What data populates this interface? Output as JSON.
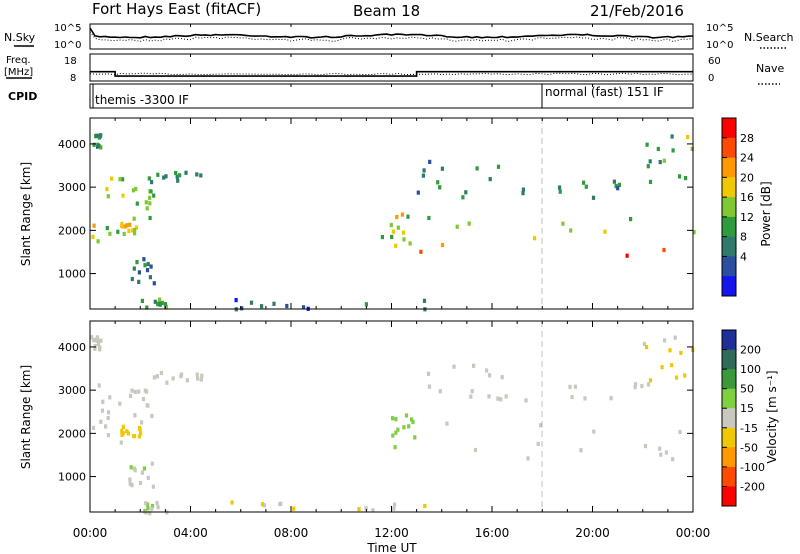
{
  "header": {
    "station": "Fort Hays East (fitACF)",
    "beam": "Beam 18",
    "date": "21/Feb/2016"
  },
  "noise_panel": {
    "left_label": "N.Sky",
    "right_label": "N.Search",
    "left_ticks": [
      "10^5",
      "10^0"
    ],
    "right_ticks": [
      "10^5",
      "10^0"
    ]
  },
  "freq_panel": {
    "left_label_line1": "Freq.",
    "left_label_line2": "[MHz]",
    "right_label": "Nave",
    "left_ticks": [
      "18",
      "8"
    ],
    "right_ticks": [
      "60",
      "0"
    ]
  },
  "cpid_panel": {
    "label": "CPID",
    "mode1": "themis -3300 IF",
    "mode2": "normal (fast) 151 IF"
  },
  "power_panel": {
    "ylabel": "Slant Range [km]",
    "cbar_label": "Power [dB]",
    "yticks": [
      "1000",
      "2000",
      "3000",
      "4000"
    ],
    "cbar_ticks": [
      "28",
      "24",
      "20",
      "16",
      "12",
      "8",
      "4"
    ],
    "cbar_colors": [
      "#ff0000",
      "#ff4a00",
      "#ff9900",
      "#f0c800",
      "#7fc832",
      "#2e9b3c",
      "#2f7a6a",
      "#2a4fa0",
      "#1414f0"
    ]
  },
  "velocity_panel": {
    "ylabel": "Slant Range [km]",
    "cbar_label": "Velocity [m s⁻¹]",
    "yticks": [
      "1000",
      "2000",
      "3000",
      "4000"
    ],
    "cbar_ticks": [
      "200",
      "100",
      "50",
      "15",
      "-15",
      "-50",
      "-100",
      "-200"
    ],
    "cbar_colors": [
      "#1e2f9a",
      "#2f6a5a",
      "#3a9a3a",
      "#7fd040",
      "#c8c8be",
      "#f0c800",
      "#ff9900",
      "#ff4a00",
      "#ff0000"
    ]
  },
  "xaxis": {
    "label": "Time UT",
    "ticks": [
      "00:00",
      "04:00",
      "08:00",
      "12:00",
      "16:00",
      "20:00",
      "00:00"
    ]
  },
  "chart_data": {
    "type": "heatmap",
    "title": "Fort Hays East (fitACF)  Beam 18  21/Feb/2016",
    "xlabel": "Time UT",
    "ylabel": "Slant Range [km]",
    "xlim": [
      0,
      24
    ],
    "ylim": [
      180,
      4600
    ],
    "x_unit": "hours UT",
    "frequency_mhz": [
      {
        "start": 0,
        "end": 1.0,
        "value": 13.5
      },
      {
        "start": 1.0,
        "end": 13.0,
        "value": 10.9
      },
      {
        "start": 13.0,
        "end": 24,
        "value": 13.5
      }
    ],
    "cpid_segments": [
      {
        "start": 0,
        "end": 18.0,
        "label": "themis -3300 IF"
      },
      {
        "start": 18.0,
        "end": 24,
        "label": "normal (fast) 151 IF"
      }
    ],
    "power_db_range": [
      0,
      32
    ],
    "velocity_ms_range": [
      -250,
      250
    ],
    "echo_regions": [
      {
        "t0": 0.0,
        "t1": 0.4,
        "r0": 3950,
        "r1": 4300,
        "power_db": 10,
        "velocity": 0
      },
      {
        "t0": 0.0,
        "t1": 1.3,
        "r0": 1750,
        "r1": 3300,
        "power_db": 18,
        "velocity": -10
      },
      {
        "t0": 1.2,
        "t1": 2.0,
        "r0": 1950,
        "r1": 2200,
        "power_db": 22,
        "velocity": -60
      },
      {
        "t0": 1.5,
        "t1": 2.5,
        "r0": 2300,
        "r1": 3100,
        "power_db": 14,
        "velocity": 0
      },
      {
        "t0": 2.0,
        "t1": 4.5,
        "r0": 3150,
        "r1": 3450,
        "power_db": 10,
        "velocity": 0
      },
      {
        "t0": 1.5,
        "t1": 2.5,
        "r0": 800,
        "r1": 1400,
        "power_db": 8,
        "velocity": 20
      },
      {
        "t0": 2.0,
        "t1": 3.0,
        "r0": 200,
        "r1": 450,
        "power_db": 12,
        "velocity": 30
      },
      {
        "t0": 11.5,
        "t1": 12.9,
        "r0": 1650,
        "r1": 2500,
        "power_db": 18,
        "velocity": 60
      },
      {
        "t0": 13.0,
        "t1": 24.0,
        "r0": 1450,
        "r1": 2350,
        "power_db": 26,
        "velocity": 0
      },
      {
        "t0": 13.0,
        "t1": 16.5,
        "r0": 2800,
        "r1": 3800,
        "power_db": 10,
        "velocity": 0
      },
      {
        "t0": 16.0,
        "t1": 22.5,
        "r0": 2800,
        "r1": 3200,
        "power_db": 9,
        "velocity": 0
      },
      {
        "t0": 22.0,
        "t1": 24.0,
        "r0": 3200,
        "r1": 4300,
        "power_db": 14,
        "velocity": -40
      },
      {
        "t0": 5.5,
        "t1": 13.5,
        "r0": 180,
        "r1": 450,
        "power_db": 6,
        "velocity": -40
      }
    ]
  }
}
